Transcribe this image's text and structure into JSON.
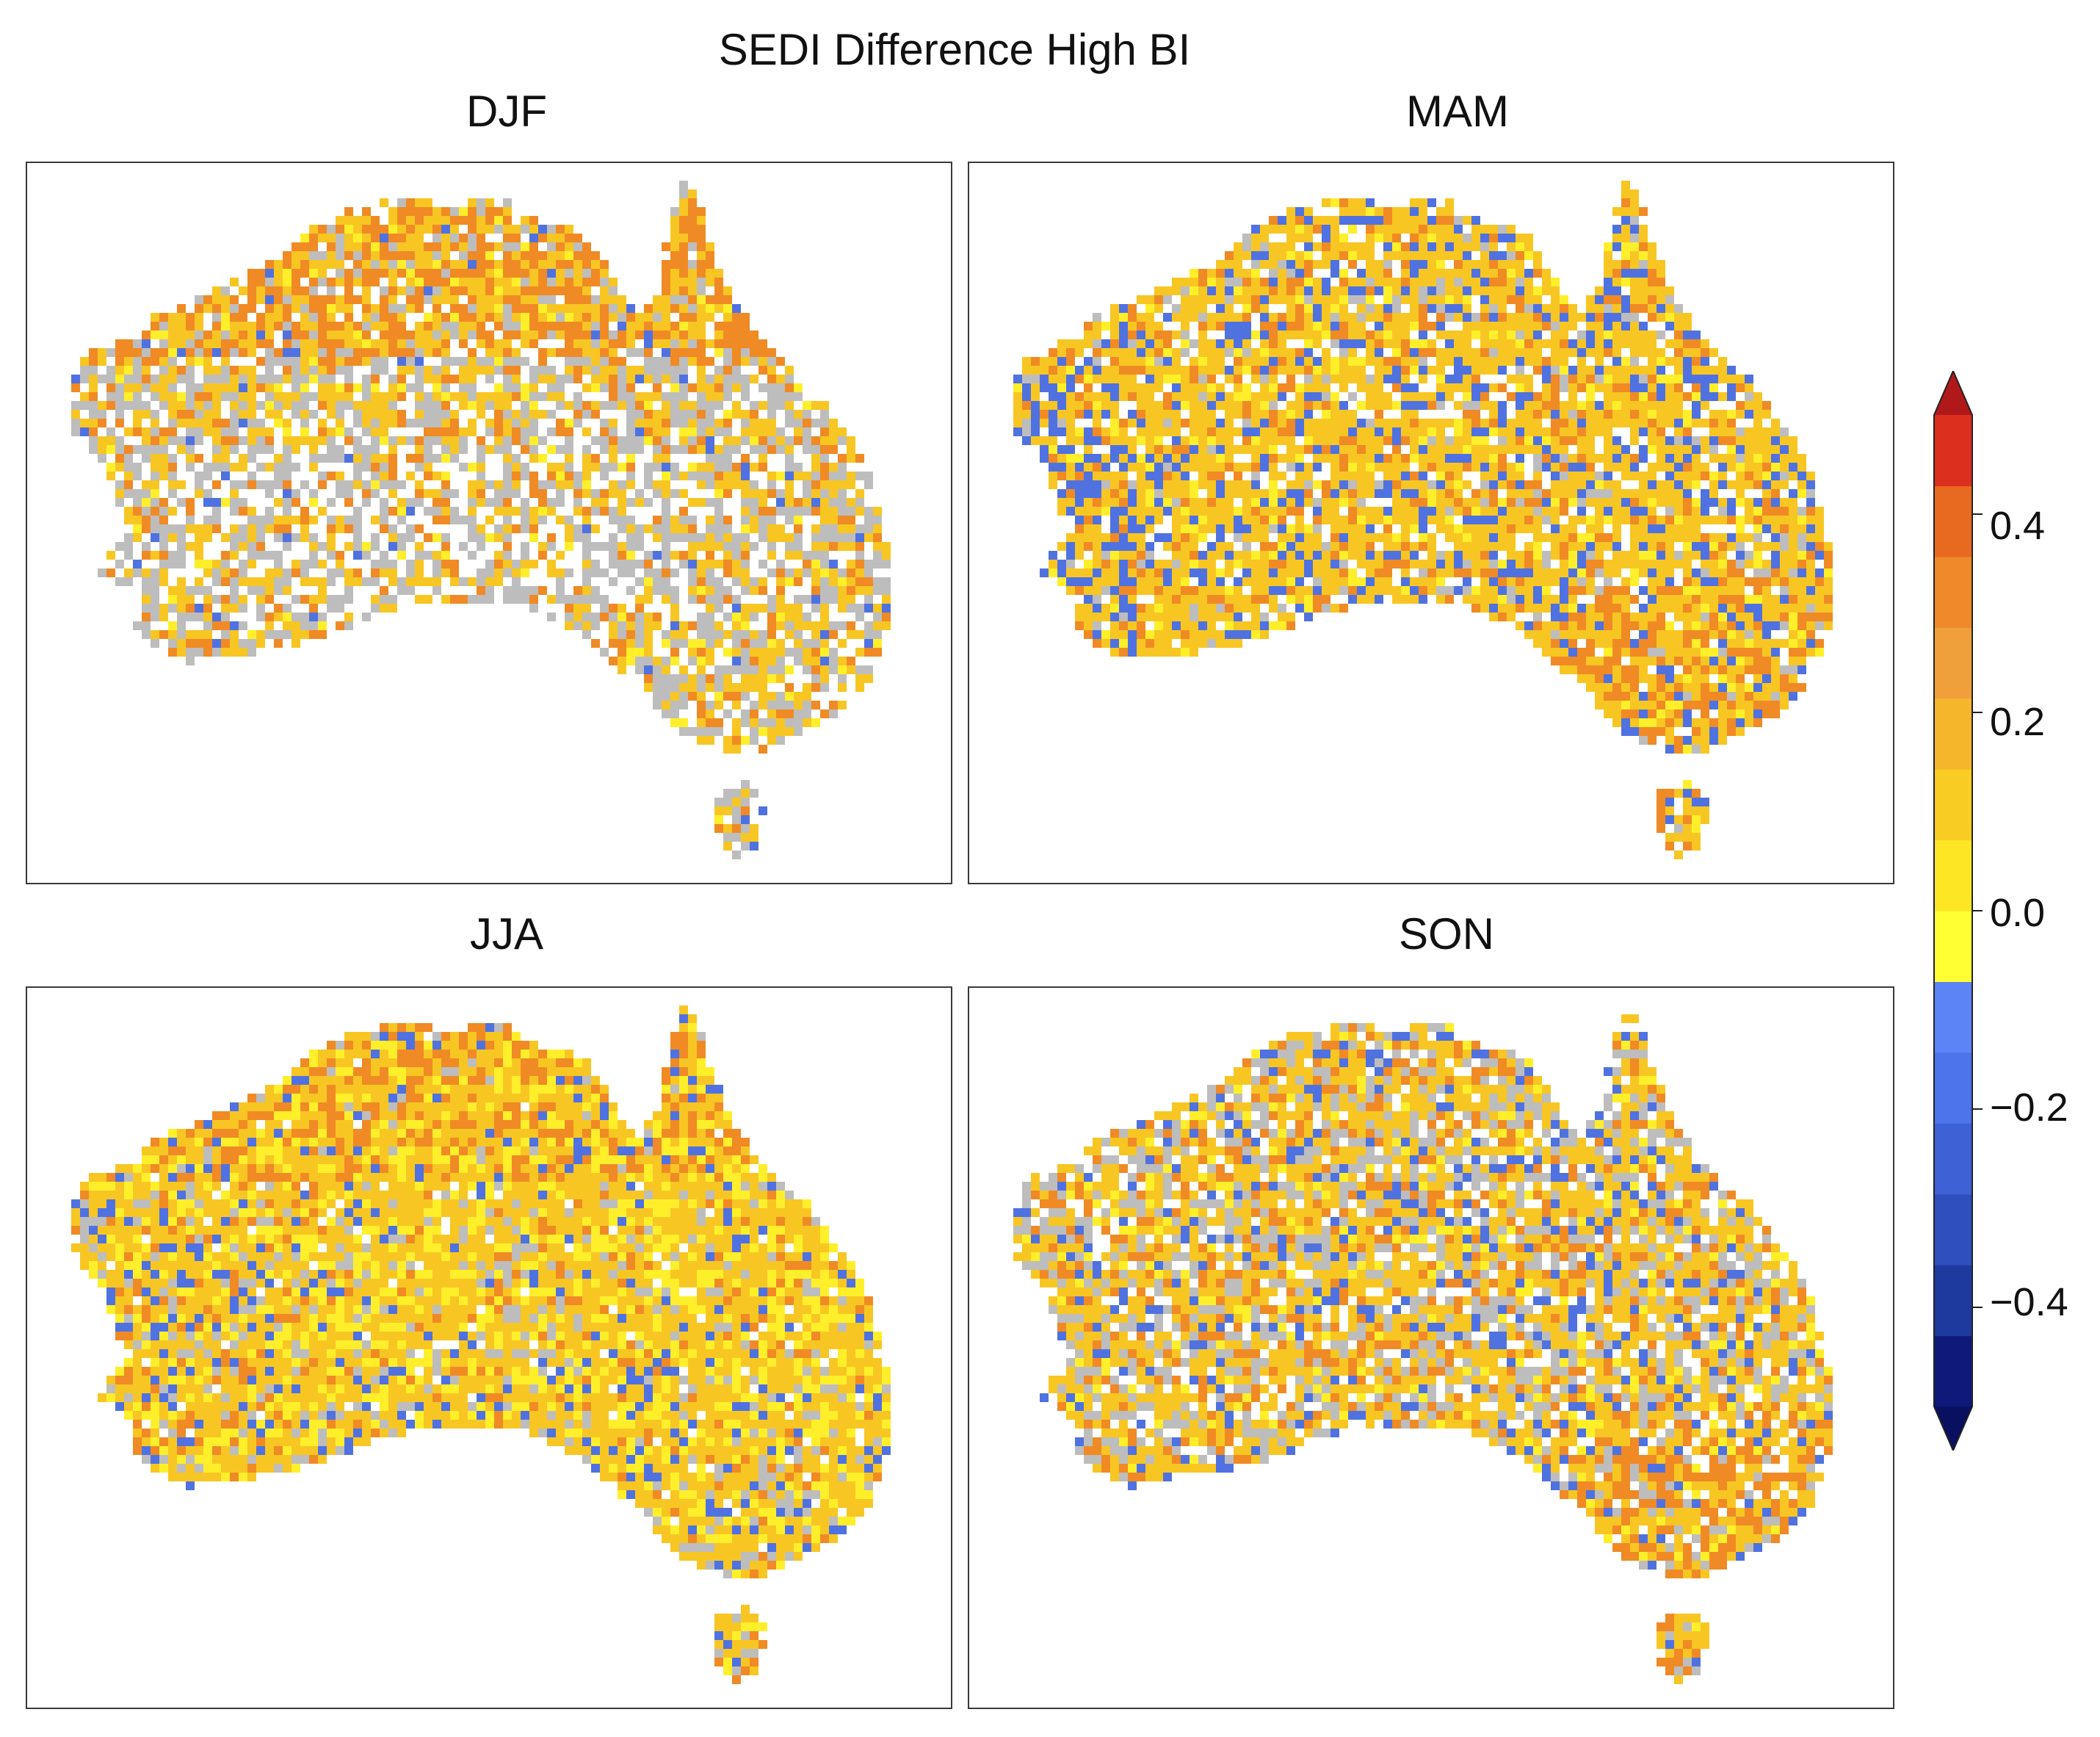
{
  "figure": {
    "title": "SEDI Difference High BI",
    "panels": [
      {
        "id": "djf",
        "label": "DJF",
        "mix": {
          "grey": 0.32,
          "orange": 0.12,
          "gold": 0.28,
          "yellow": 0.04,
          "blue": 0.02,
          "blank": 0.22
        },
        "hot": "north"
      },
      {
        "id": "mam",
        "label": "MAM",
        "mix": {
          "grey": 0.06,
          "orange": 0.12,
          "gold": 0.5,
          "yellow": 0.08,
          "blue": 0.14,
          "blank": 0.1
        },
        "hot": "southeast"
      },
      {
        "id": "jja",
        "label": "JJA",
        "mix": {
          "grey": 0.1,
          "orange": 0.08,
          "gold": 0.5,
          "yellow": 0.2,
          "blue": 0.08,
          "blank": 0.04
        },
        "hot": "north"
      },
      {
        "id": "son",
        "label": "SON",
        "mix": {
          "grey": 0.22,
          "orange": 0.12,
          "gold": 0.38,
          "yellow": 0.06,
          "blue": 0.1,
          "blank": 0.12
        },
        "hot": "southeast"
      }
    ],
    "colorbar": {
      "min": -0.5,
      "max": 0.5,
      "tick_labels": [
        "0.4",
        "0.2",
        "0.0",
        "−0.2",
        "−0.4"
      ],
      "tick_values": [
        0.4,
        0.2,
        0.0,
        -0.2,
        -0.4
      ],
      "extend": "both",
      "colors": [
        "#0d1a7a",
        "#1f3a9e",
        "#2e4fbd",
        "#3e62d6",
        "#4d74ea",
        "#5c84f7",
        "#ffff33",
        "#fde725",
        "#f8cc22",
        "#f5b62c",
        "#f0a03a",
        "#ef8a2a",
        "#e86a20",
        "#dd2f1e"
      ],
      "upper_extend_color": "#b0181a",
      "lower_extend_color": "#0a1060"
    },
    "palette": {
      "grey": "#bdbdbd",
      "orange": "#f08a24",
      "gold": "#f8c623",
      "yellow": "#ffef2a",
      "blue": "#4f72e0",
      "darkorange": "#e0661c"
    }
  }
}
